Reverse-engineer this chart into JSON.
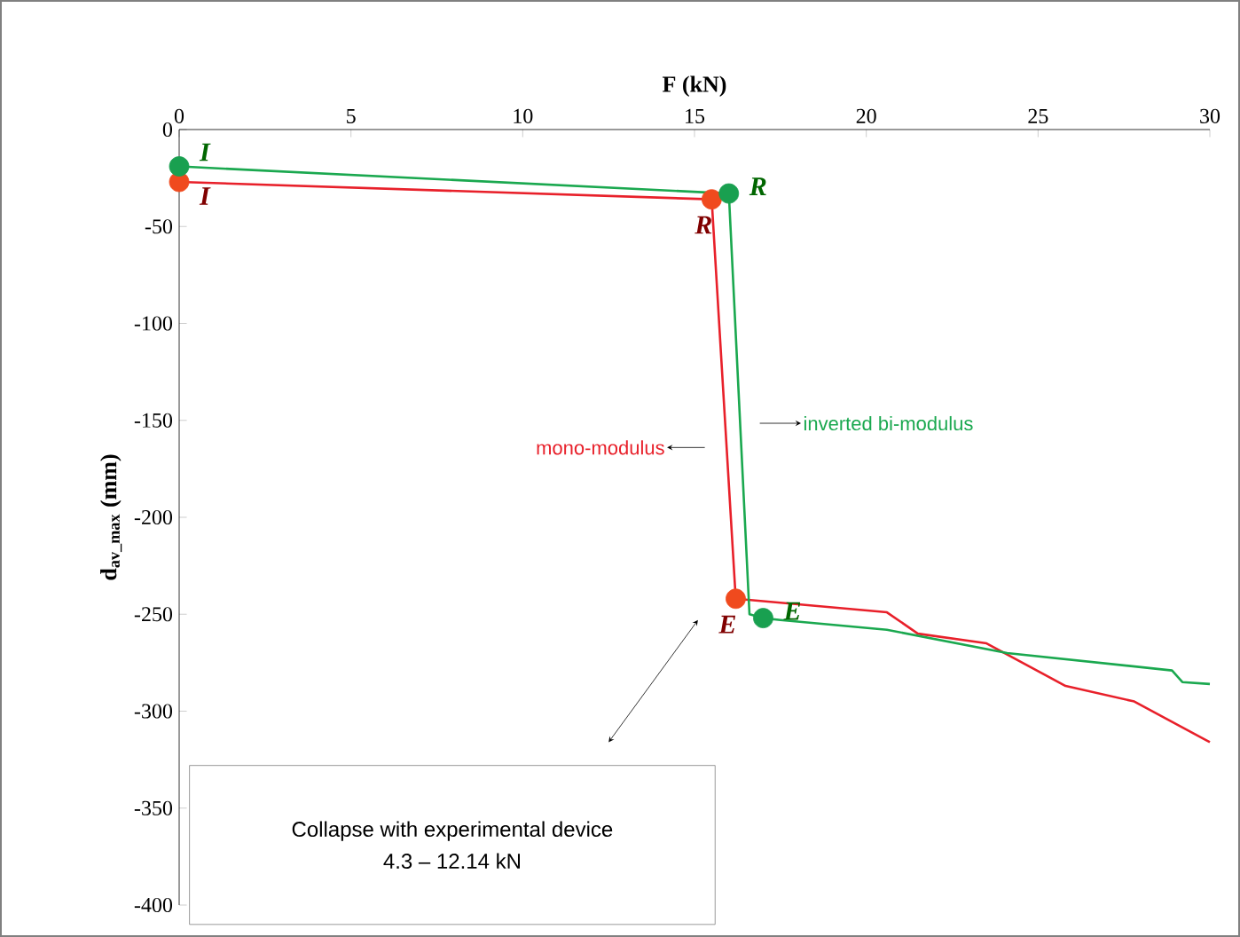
{
  "chart_data": {
    "type": "line",
    "xlabel": "F (kN)",
    "ylabel": "**d$_{av_max}$ (mm)**",
    "xlim": [
      0,
      30
    ],
    "ylim": [
      -400,
      0
    ],
    "xticks": [
      0,
      5,
      10,
      15,
      20,
      25,
      30
    ],
    "yticks": [
      -400,
      -350,
      -300,
      -250,
      -200,
      -150,
      -100,
      -50,
      0
    ],
    "grid": false,
    "legend": false,
    "line_style": "solid",
    "series": [
      {
        "name": "mono-modulus",
        "color": "#e8202a",
        "marker": "none",
        "x": [
          0,
          15.5,
          16.2,
          20.6,
          21.5,
          23.5,
          25.8,
          27.8,
          29.9,
          30
        ],
        "values": [
          -27,
          -36,
          -242,
          -249,
          -260,
          -265,
          -287,
          -295,
          -315,
          -316
        ]
      },
      {
        "name": "inverted bi-modulus",
        "color": "#1aa84f",
        "marker": "none",
        "x": [
          0,
          16.0,
          16.6,
          17.0,
          17.5,
          20.6,
          24.1,
          28.9,
          29.2,
          30
        ],
        "values": [
          -19,
          -33,
          -250,
          -252,
          -253,
          -258,
          -270,
          -279,
          -285,
          -286
        ]
      },
      {
        "type": "scatter",
        "color": "#f04a1e",
        "marker": "circle",
        "x": [
          0,
          15.5,
          16.2
        ],
        "values": [
          -27,
          -36,
          -242
        ]
      },
      {
        "type": "scatter",
        "color": "#19a050",
        "marker": "circle",
        "x": [
          0,
          16.0,
          17.0
        ],
        "values": [
          -19,
          -33,
          -252
        ]
      }
    ],
    "annotations": [
      {
        "text": "I",
        "x": 0,
        "y": -27
      },
      {
        "text": "R",
        "x": 15.5,
        "y": -36
      },
      {
        "text": "E",
        "x": 16.2,
        "y": -242
      },
      {
        "text": "I",
        "x": 0,
        "y": -19
      },
      {
        "text": "R",
        "x": 16.0,
        "y": -33
      },
      {
        "text": "E",
        "x": 17.0,
        "y": -252
      },
      "Collapse with experimental device",
      "4.3 – 12.14 kN"
    ]
  }
}
